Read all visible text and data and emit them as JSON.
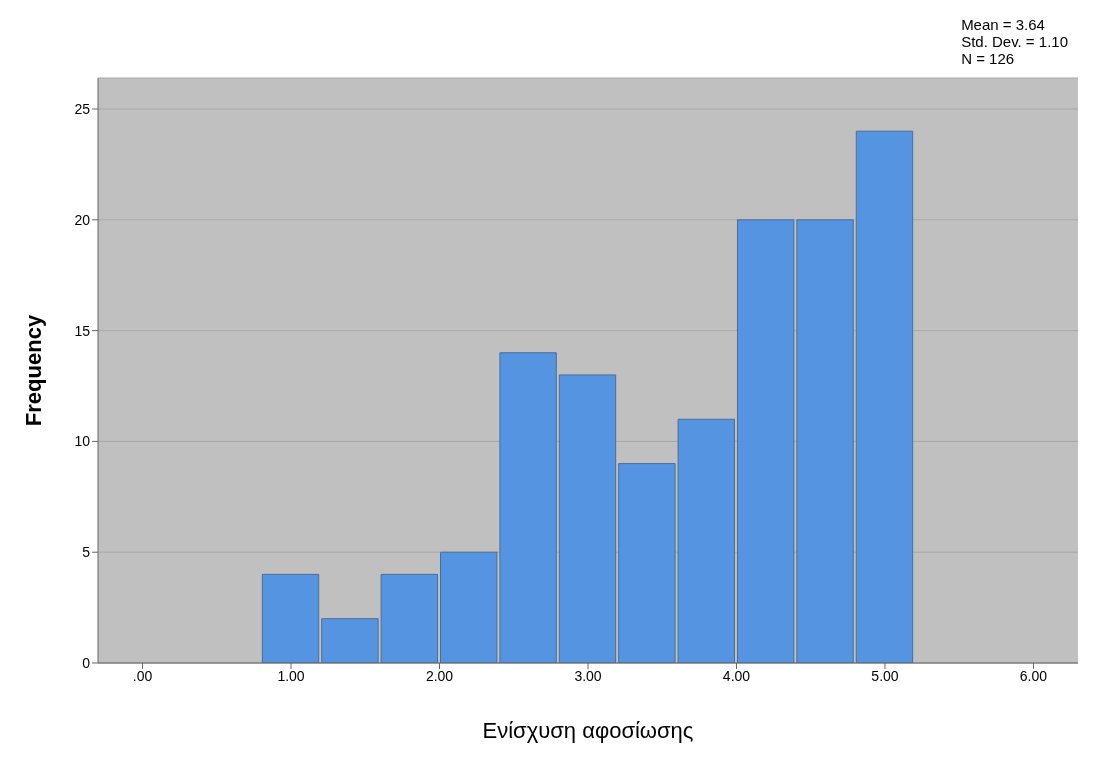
{
  "chart_data": {
    "type": "histogram",
    "xlabel": "Ενίσχυση αφοσίωσης",
    "ylabel": "Frequency",
    "annotations": [
      "Mean = 3.64",
      "Std. Dev. = 1.10",
      "N = 126"
    ],
    "bins": [
      0.8,
      1.2,
      1.6,
      2.0,
      2.4,
      2.8,
      3.2,
      3.6,
      4.0,
      4.4,
      4.8,
      5.2
    ],
    "values": [
      4,
      2,
      4,
      5,
      14,
      13,
      9,
      11,
      20,
      20,
      24
    ],
    "color": "#5594e0",
    "xlim": [
      -0.3,
      6.3
    ],
    "xticks": [
      {
        "value": 0,
        "label": ".00"
      },
      {
        "value": 1,
        "label": "1.00"
      },
      {
        "value": 2,
        "label": "2.00"
      },
      {
        "value": 3,
        "label": "3.00"
      },
      {
        "value": 4,
        "label": "4.00"
      },
      {
        "value": 5,
        "label": "5.00"
      },
      {
        "value": 6,
        "label": "6.00"
      }
    ],
    "ylim": [
      0,
      26.4
    ],
    "yticks": [
      0,
      5,
      10,
      15,
      20,
      25
    ],
    "grid": "y",
    "legend": false
  }
}
